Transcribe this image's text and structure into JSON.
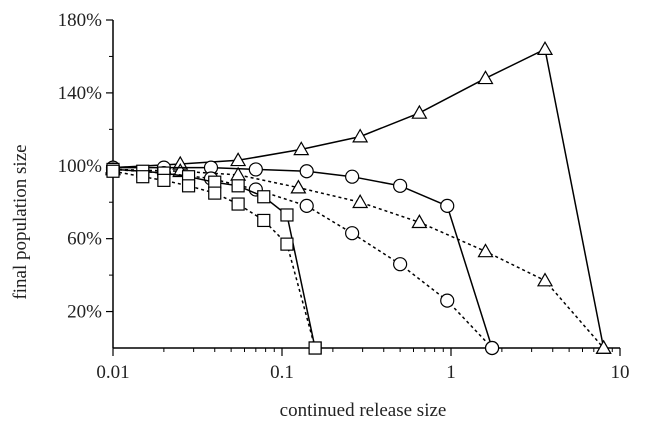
{
  "chart_data": {
    "type": "line",
    "xlabel": "continued release size",
    "ylabel": "final population size",
    "x_scale": "log",
    "xlim": [
      0.01,
      10
    ],
    "ylim": [
      0,
      180
    ],
    "x_ticks": [
      {
        "value": 0.01,
        "label": "0.01"
      },
      {
        "value": 0.1,
        "label": "0.1"
      },
      {
        "value": 1,
        "label": "1"
      },
      {
        "value": 10,
        "label": "10"
      }
    ],
    "y_ticks": [
      {
        "value": 20,
        "label": "20%"
      },
      {
        "value": 60,
        "label": "60%"
      },
      {
        "value": 100,
        "label": "100%"
      },
      {
        "value": 140,
        "label": "140%"
      },
      {
        "value": 180,
        "label": "180%"
      }
    ],
    "grid": false,
    "series": [
      {
        "marker": "triangle",
        "line": "solid",
        "points": [
          [
            0.01,
            99
          ],
          [
            0.025,
            101
          ],
          [
            0.055,
            103
          ],
          [
            0.13,
            109
          ],
          [
            0.29,
            116
          ],
          [
            0.65,
            129
          ],
          [
            1.6,
            148
          ],
          [
            3.6,
            164
          ],
          [
            8.0,
            0
          ]
        ]
      },
      {
        "marker": "triangle",
        "line": "dashed",
        "points": [
          [
            0.01,
            98
          ],
          [
            0.025,
            97
          ],
          [
            0.055,
            95
          ],
          [
            0.125,
            88
          ],
          [
            0.29,
            80
          ],
          [
            0.65,
            69
          ],
          [
            1.6,
            53
          ],
          [
            3.6,
            37
          ],
          [
            8.0,
            0
          ]
        ]
      },
      {
        "marker": "circle",
        "line": "solid",
        "points": [
          [
            0.01,
            99
          ],
          [
            0.02,
            99
          ],
          [
            0.038,
            99
          ],
          [
            0.07,
            98
          ],
          [
            0.14,
            97
          ],
          [
            0.26,
            94
          ],
          [
            0.5,
            89
          ],
          [
            0.95,
            78
          ],
          [
            1.75,
            0
          ]
        ]
      },
      {
        "marker": "circle",
        "line": "dashed",
        "points": [
          [
            0.01,
            98
          ],
          [
            0.02,
            96
          ],
          [
            0.038,
            93
          ],
          [
            0.07,
            87
          ],
          [
            0.14,
            78
          ],
          [
            0.26,
            63
          ],
          [
            0.5,
            46
          ],
          [
            0.95,
            26
          ],
          [
            1.75,
            0
          ]
        ]
      },
      {
        "marker": "square",
        "line": "solid",
        "points": [
          [
            0.01,
            98
          ],
          [
            0.015,
            97
          ],
          [
            0.02,
            96
          ],
          [
            0.028,
            94
          ],
          [
            0.04,
            91
          ],
          [
            0.055,
            89
          ],
          [
            0.078,
            83
          ],
          [
            0.107,
            73
          ],
          [
            0.157,
            0
          ]
        ]
      },
      {
        "marker": "square",
        "line": "dashed",
        "points": [
          [
            0.01,
            97
          ],
          [
            0.015,
            94
          ],
          [
            0.02,
            92
          ],
          [
            0.028,
            89
          ],
          [
            0.04,
            85
          ],
          [
            0.055,
            79
          ],
          [
            0.078,
            70
          ],
          [
            0.107,
            57
          ],
          [
            0.157,
            0
          ]
        ]
      }
    ]
  }
}
